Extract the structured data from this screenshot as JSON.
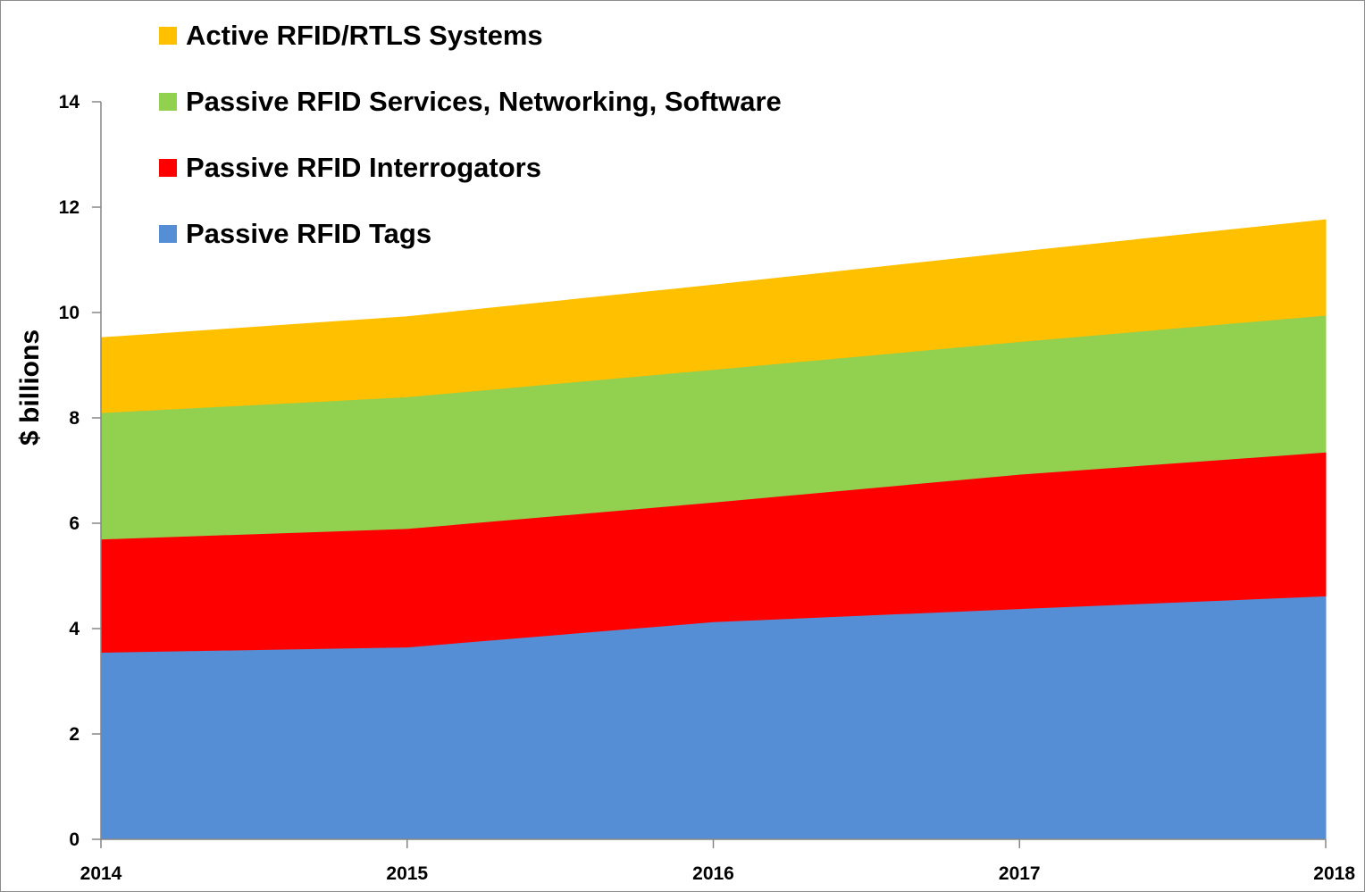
{
  "chart_data": {
    "type": "area",
    "stacked": true,
    "x": [
      "2014",
      "2015",
      "2016",
      "2017",
      "2018"
    ],
    "ylabel": "$ billions",
    "xlabel": "",
    "ylim": [
      0,
      14
    ],
    "yticks": [
      0,
      2,
      4,
      6,
      8,
      10,
      12,
      14
    ],
    "grid": false,
    "legend_position": "top-left",
    "series": [
      {
        "name": "Passive RFID Tags",
        "color": "#558ed5",
        "values": [
          3.55,
          3.65,
          4.13,
          4.38,
          4.62
        ]
      },
      {
        "name": "Passive RFID Interrogators",
        "color": "#ff0000",
        "values": [
          2.15,
          2.25,
          2.27,
          2.55,
          2.73
        ]
      },
      {
        "name": "Passive RFID Services, Networking, Software",
        "color": "#92d050",
        "values": [
          2.4,
          2.5,
          2.52,
          2.52,
          2.6
        ]
      },
      {
        "name": "Active RFID/RTLS Systems",
        "color": "#ffc000",
        "values": [
          1.42,
          1.52,
          1.6,
          1.7,
          1.81
        ]
      }
    ],
    "legend_order": [
      3,
      2,
      1,
      0
    ]
  }
}
